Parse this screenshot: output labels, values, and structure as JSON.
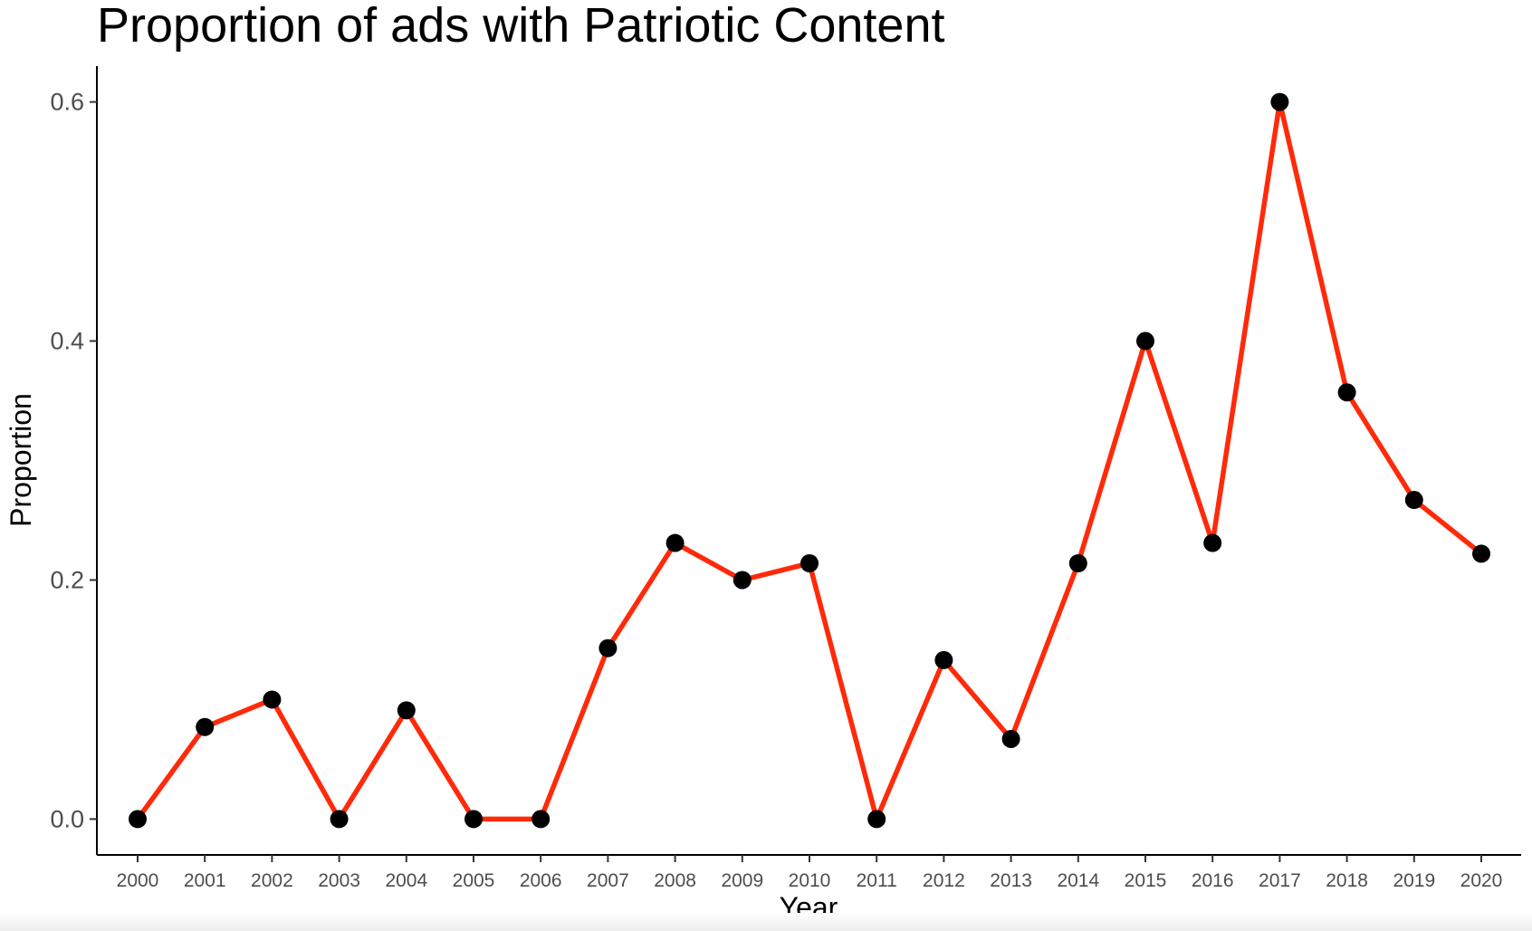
{
  "chart_data": {
    "type": "line",
    "title": "Proportion of ads with Patriotic Content",
    "xlabel": "Year",
    "ylabel": "Proportion",
    "x": [
      "2000",
      "2001",
      "2002",
      "2003",
      "2004",
      "2005",
      "2006",
      "2007",
      "2008",
      "2009",
      "2010",
      "2011",
      "2012",
      "2013",
      "2014",
      "2015",
      "2016",
      "2017",
      "2018",
      "2019",
      "2020"
    ],
    "series": [
      {
        "values": [
          0.0,
          0.077,
          0.1,
          0.0,
          0.091,
          0.0,
          0.0,
          0.143,
          0.231,
          0.2,
          0.214,
          0.0,
          0.133,
          0.067,
          0.214,
          0.4,
          0.231,
          0.6,
          0.357,
          0.267,
          0.222
        ]
      }
    ],
    "yticks": [
      "0.0",
      "0.2",
      "0.4",
      "0.6"
    ],
    "yticks_values": [
      0.0,
      0.2,
      0.4,
      0.6
    ],
    "ylim": [
      -0.03,
      0.63
    ],
    "line_color": "#ff2a0a",
    "point_color": "#000000",
    "grid": false,
    "legend": "none"
  }
}
